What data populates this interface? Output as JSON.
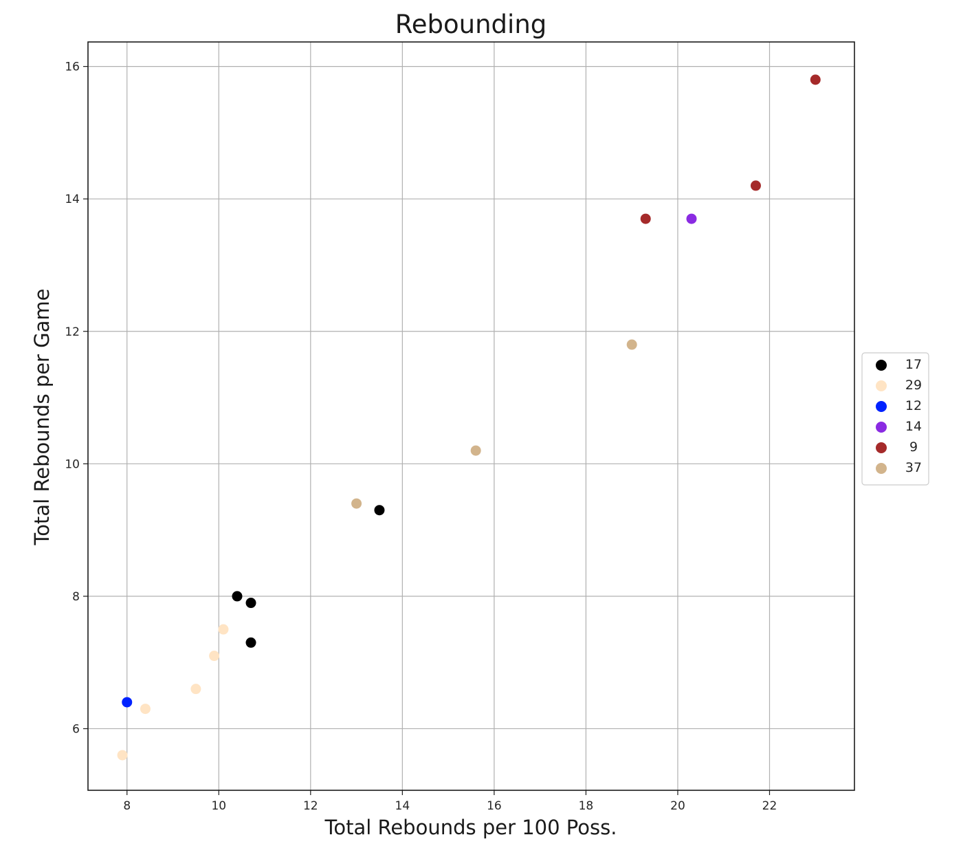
{
  "chart_data": {
    "type": "scatter",
    "title": "Rebounding",
    "xlabel": "Total Rebounds per 100 Poss.",
    "ylabel": "Total Rebounds per Game",
    "xlim": [
      7.15,
      23.85
    ],
    "ylim": [
      5.07,
      16.37
    ],
    "xticks": [
      8,
      10,
      12,
      14,
      16,
      18,
      20,
      22
    ],
    "yticks": [
      6,
      8,
      10,
      12,
      14,
      16
    ],
    "grid": true,
    "legend_position": "center-right outside",
    "series": [
      {
        "name": "17",
        "color": "#000000",
        "points": [
          [
            10.4,
            8.0
          ],
          [
            10.7,
            7.9
          ],
          [
            10.7,
            7.3
          ],
          [
            13.5,
            9.3
          ]
        ]
      },
      {
        "name": "29",
        "color": "#ffe4c4",
        "points": [
          [
            7.9,
            5.6
          ],
          [
            8.4,
            6.3
          ],
          [
            9.5,
            6.6
          ],
          [
            9.9,
            7.1
          ],
          [
            10.1,
            7.5
          ]
        ]
      },
      {
        "name": "12",
        "color": "#0022ff",
        "points": [
          [
            8.0,
            6.4
          ]
        ]
      },
      {
        "name": "14",
        "color": "#8a2be2",
        "points": [
          [
            20.3,
            13.7
          ]
        ]
      },
      {
        "name": "9",
        "color": "#a52a2a",
        "points": [
          [
            19.3,
            13.7
          ],
          [
            21.7,
            14.2
          ],
          [
            23.0,
            15.8
          ]
        ]
      },
      {
        "name": "37",
        "color": "#d2b48c",
        "points": [
          [
            13.0,
            9.4
          ],
          [
            15.6,
            10.2
          ],
          [
            19.0,
            11.8
          ]
        ]
      }
    ]
  }
}
